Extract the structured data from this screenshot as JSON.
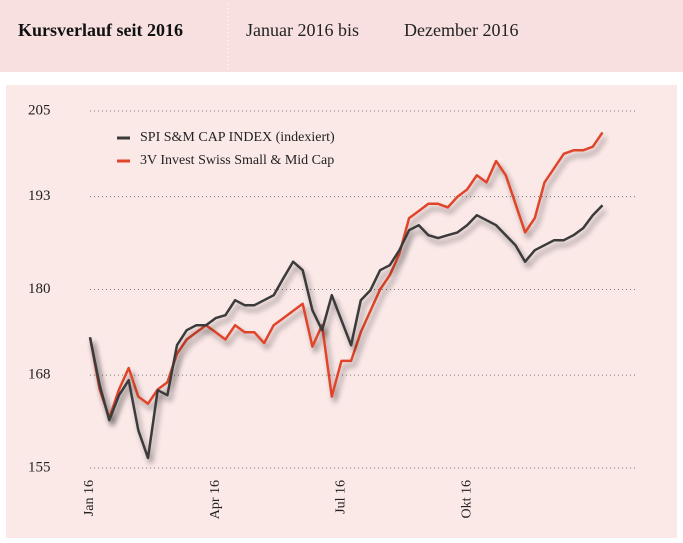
{
  "header": {
    "title": "Kursverlauf seit 2016",
    "range_from": "Januar 2016 bis",
    "range_to": "Dezember 2016"
  },
  "chart_data": {
    "type": "line",
    "categories": [
      "Jan 16",
      null,
      null,
      null,
      null,
      null,
      null,
      null,
      null,
      null,
      null,
      null,
      null,
      "Apr 16",
      null,
      null,
      null,
      null,
      null,
      null,
      null,
      null,
      null,
      null,
      null,
      null,
      "Jul 16",
      null,
      null,
      null,
      null,
      null,
      null,
      null,
      null,
      null,
      null,
      null,
      null,
      "Okt 16",
      null,
      null,
      null,
      null,
      null,
      null,
      null,
      null,
      null,
      null,
      null,
      null,
      null,
      null
    ],
    "series": [
      {
        "name": "SPI S&M CAP INDEX (indexiert)",
        "color": "#3a3a3a",
        "values": [
          173.3,
          166.6,
          161.7,
          165.2,
          167.3,
          160.3,
          156.4,
          165.9,
          165.2,
          172.2,
          174.3,
          175,
          175,
          176,
          176.4,
          178.5,
          177.8,
          177.8,
          178.5,
          179.2,
          181.6,
          183.9,
          182.7,
          177.1,
          174.3,
          179.2,
          175.7,
          172.2,
          178.5,
          179.9,
          182.7,
          183.4,
          185.5,
          188.3,
          189,
          187.6,
          187.2,
          187.6,
          188,
          189,
          190.4,
          189.7,
          189,
          187.6,
          186.2,
          183.9,
          185.5,
          186.2,
          186.9,
          186.9,
          187.6,
          188.6,
          190.4,
          191.8
        ]
      },
      {
        "name": "3V Invest Swiss Small & Mid Cap",
        "color": "#e0452a",
        "values": [
          173.3,
          166,
          162,
          166,
          169,
          165,
          164,
          166,
          167,
          171,
          173,
          174,
          175,
          174,
          173,
          175,
          174,
          174,
          172.5,
          175,
          176,
          177,
          178,
          172,
          175,
          165,
          170,
          170,
          174,
          177,
          180,
          182,
          185,
          190,
          191,
          192,
          192,
          191.5,
          193,
          194,
          196,
          195,
          198,
          196,
          192,
          188,
          190,
          195,
          197,
          199,
          199.5,
          199.5,
          200,
          202
        ]
      }
    ],
    "ylim": [
      155,
      205
    ],
    "yticks": [
      155,
      168,
      180,
      193,
      205
    ],
    "grid": true,
    "legend": "upper left"
  }
}
